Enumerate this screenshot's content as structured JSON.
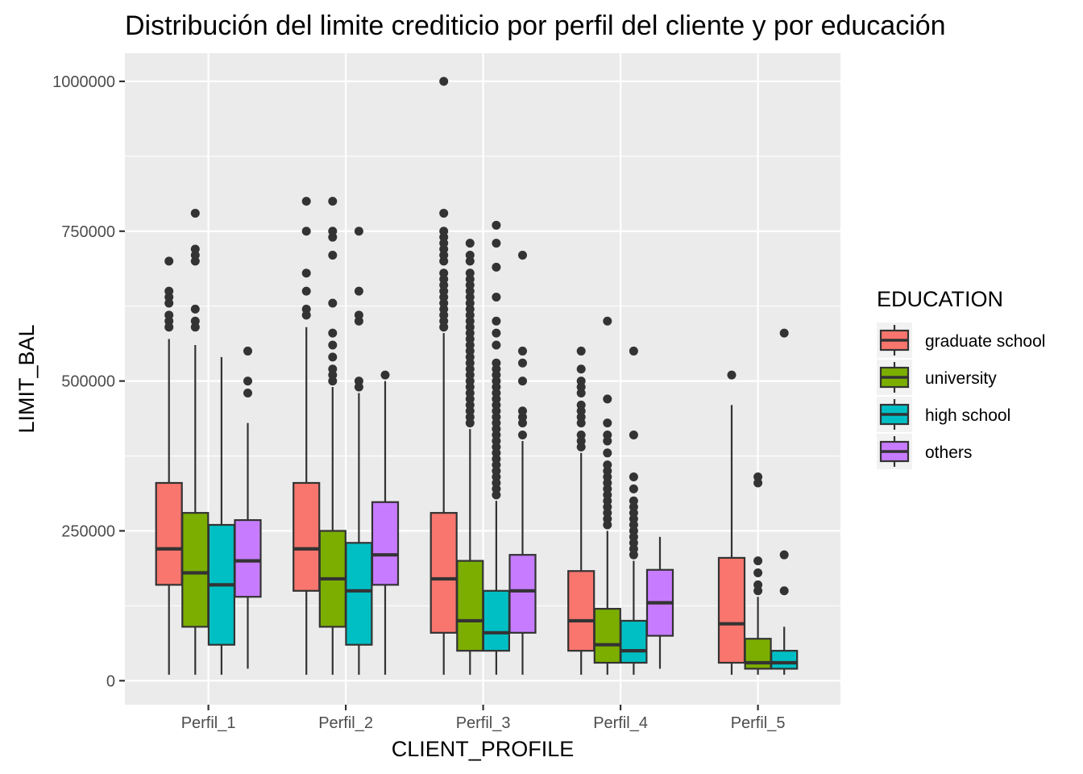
{
  "chart_data": {
    "type": "boxplot",
    "title": "Distribución del limite crediticio por perfil del cliente y por educación",
    "xlabel": "CLIENT_PROFILE",
    "ylabel": "LIMIT_BAL",
    "categories": [
      "Perfil_1",
      "Perfil_2",
      "Perfil_3",
      "Perfil_4",
      "Perfil_5"
    ],
    "yticks": [
      0,
      250000,
      500000,
      750000,
      1000000
    ],
    "ytick_labels": [
      "0",
      "250000",
      "500000",
      "750000",
      "1000000"
    ],
    "ylim": [
      -40000,
      1050000
    ],
    "grid": true,
    "legend": {
      "title": "EDUCATION",
      "placement": "right"
    },
    "series": [
      {
        "name": "graduate school",
        "color": "#F8766D",
        "boxes": [
          {
            "min": 10000,
            "q1": 160000,
            "median": 220000,
            "q3": 330000,
            "max": 570000,
            "outliers": [
              590000,
              600000,
              610000,
              630000,
              640000,
              650000,
              700000
            ]
          },
          {
            "min": 10000,
            "q1": 150000,
            "median": 220000,
            "q3": 330000,
            "max": 590000,
            "outliers": [
              610000,
              620000,
              650000,
              680000,
              750000,
              800000
            ]
          },
          {
            "min": 10000,
            "q1": 80000,
            "median": 170000,
            "q3": 280000,
            "max": 580000,
            "outliers": [
              590000,
              600000,
              610000,
              620000,
              630000,
              640000,
              650000,
              660000,
              670000,
              680000,
              700000,
              710000,
              720000,
              730000,
              740000,
              750000,
              780000,
              1000000
            ]
          },
          {
            "min": 10000,
            "q1": 50000,
            "median": 100000,
            "q3": 183000,
            "max": 380000,
            "outliers": [
              390000,
              400000,
              410000,
              430000,
              440000,
              450000,
              460000,
              480000,
              490000,
              500000,
              520000,
              550000
            ]
          },
          {
            "min": 10000,
            "q1": 30000,
            "median": 95000,
            "q3": 205000,
            "max": 460000,
            "outliers": [
              510000
            ]
          }
        ]
      },
      {
        "name": "university",
        "color": "#7CAE00",
        "boxes": [
          {
            "min": 10000,
            "q1": 90000,
            "median": 180000,
            "q3": 280000,
            "max": 560000,
            "outliers": [
              590000,
              600000,
              620000,
              700000,
              710000,
              720000,
              780000
            ]
          },
          {
            "min": 10000,
            "q1": 90000,
            "median": 170000,
            "q3": 250000,
            "max": 490000,
            "outliers": [
              500000,
              510000,
              520000,
              540000,
              560000,
              580000,
              630000,
              710000,
              740000,
              750000,
              800000
            ]
          },
          {
            "min": 10000,
            "q1": 50000,
            "median": 100000,
            "q3": 200000,
            "max": 420000,
            "outliers": [
              430000,
              440000,
              450000,
              460000,
              470000,
              480000,
              490000,
              500000,
              510000,
              520000,
              530000,
              540000,
              550000,
              560000,
              570000,
              580000,
              590000,
              600000,
              610000,
              620000,
              630000,
              640000,
              650000,
              660000,
              670000,
              680000,
              700000,
              710000,
              730000
            ]
          },
          {
            "min": 10000,
            "q1": 30000,
            "median": 60000,
            "q3": 120000,
            "max": 250000,
            "outliers": [
              260000,
              270000,
              280000,
              290000,
              300000,
              310000,
              320000,
              330000,
              340000,
              350000,
              360000,
              380000,
              400000,
              410000,
              430000,
              470000,
              600000
            ]
          },
          {
            "min": 10000,
            "q1": 20000,
            "median": 30000,
            "q3": 70000,
            "max": 140000,
            "outliers": [
              150000,
              160000,
              180000,
              200000,
              330000,
              340000
            ]
          }
        ]
      },
      {
        "name": "high school",
        "color": "#00BFC4",
        "boxes": [
          {
            "min": 10000,
            "q1": 60000,
            "median": 160000,
            "q3": 260000,
            "max": 540000,
            "outliers": []
          },
          {
            "min": 10000,
            "q1": 60000,
            "median": 150000,
            "q3": 230000,
            "max": 480000,
            "outliers": [
              490000,
              500000,
              600000,
              610000,
              650000,
              750000
            ]
          },
          {
            "min": 10000,
            "q1": 50000,
            "median": 80000,
            "q3": 150000,
            "max": 300000,
            "outliers": [
              310000,
              320000,
              330000,
              340000,
              350000,
              360000,
              370000,
              380000,
              390000,
              400000,
              410000,
              420000,
              430000,
              440000,
              450000,
              460000,
              470000,
              480000,
              490000,
              500000,
              510000,
              520000,
              530000,
              560000,
              580000,
              600000,
              640000,
              690000,
              730000,
              760000
            ]
          },
          {
            "min": 10000,
            "q1": 30000,
            "median": 50000,
            "q3": 100000,
            "max": 200000,
            "outliers": [
              210000,
              220000,
              230000,
              240000,
              250000,
              260000,
              270000,
              280000,
              290000,
              300000,
              320000,
              340000,
              410000,
              550000
            ]
          },
          {
            "min": 10000,
            "q1": 20000,
            "median": 30000,
            "q3": 50000,
            "max": 90000,
            "outliers": [
              150000,
              210000,
              580000
            ]
          }
        ]
      },
      {
        "name": "others",
        "color": "#C77CFF",
        "boxes": [
          {
            "min": 20000,
            "q1": 140000,
            "median": 200000,
            "q3": 268000,
            "max": 430000,
            "outliers": [
              480000,
              500000,
              550000
            ]
          },
          {
            "min": 10000,
            "q1": 160000,
            "median": 210000,
            "q3": 298000,
            "max": 500000,
            "outliers": [
              510000
            ]
          },
          {
            "min": 10000,
            "q1": 80000,
            "median": 150000,
            "q3": 210000,
            "max": 400000,
            "outliers": [
              410000,
              430000,
              440000,
              450000,
              500000,
              530000,
              550000,
              710000
            ]
          },
          {
            "min": 20000,
            "q1": 75000,
            "median": 130000,
            "q3": 185000,
            "max": 240000,
            "outliers": []
          }
        ]
      }
    ]
  }
}
